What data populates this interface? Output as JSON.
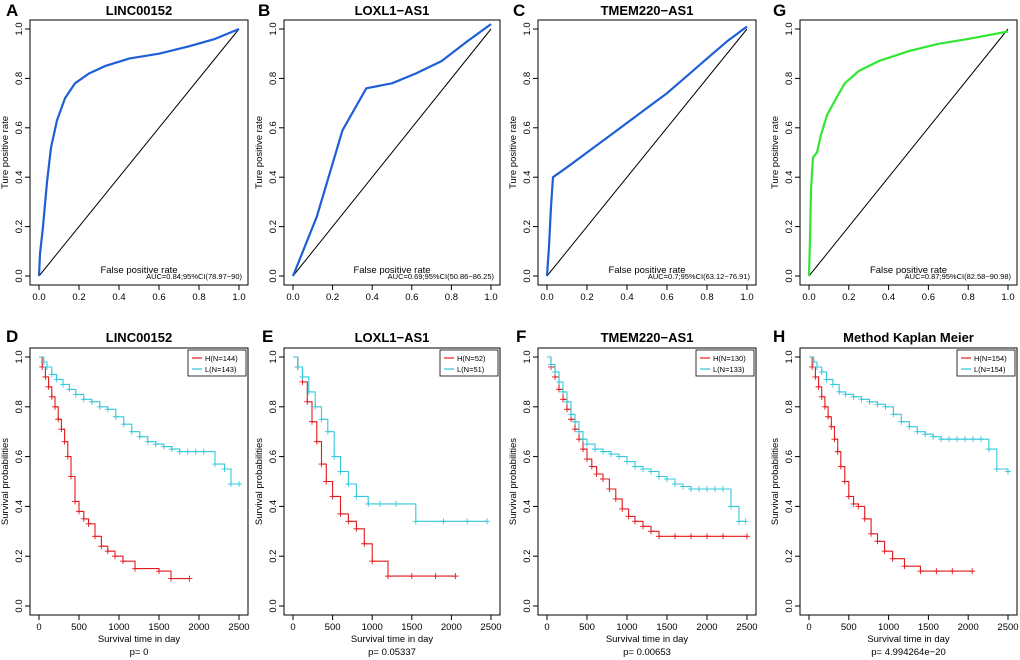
{
  "figure": {
    "colors": {
      "black": "#000000",
      "roc_blue": "#1f5fd6",
      "roc_green": "#33e633",
      "km_high": "#e31a1c",
      "km_low": "#33c8dc"
    },
    "roc_panels": [
      {
        "letter": "A",
        "title": "LINC00152",
        "auc_text": "AUC=0.84;95%CI(78.97−90)",
        "xlabel": "False positive rate",
        "ylabel": "Ture positive rate"
      },
      {
        "letter": "B",
        "title": "LOXL1−AS1",
        "auc_text": "AUC=0.69;95%CI(50.86−86.25)",
        "xlabel": "False positive rate",
        "ylabel": "Ture positive rate"
      },
      {
        "letter": "C",
        "title": "TMEM220−AS1",
        "auc_text": "AUC=0.7;95%CI(63.12−76.91)",
        "xlabel": "False positive rate",
        "ylabel": "Ture positive rate"
      },
      {
        "letter": "G",
        "title": "",
        "auc_text": "AUC=0.87;95%CI(82.58−90.98)",
        "xlabel": "False positive rate",
        "ylabel": "Ture positive rate"
      }
    ],
    "km_panels": [
      {
        "letter": "D",
        "title": "LINC00152",
        "legend_high": "H(N=144)",
        "legend_low": "L(N=143)",
        "pvalue": "p= 0",
        "xlabel": "Survival time in day",
        "ylabel": "Survival probabilities"
      },
      {
        "letter": "E",
        "title": "LOXL1−AS1",
        "legend_high": "H(N=52)",
        "legend_low": "L(N=51)",
        "pvalue": "p= 0.05337",
        "xlabel": "Survival time in day",
        "ylabel": "Survival probabilities"
      },
      {
        "letter": "F",
        "title": "TMEM220−AS1",
        "legend_high": "H(N=130)",
        "legend_low": "L(N=133)",
        "pvalue": "p= 0.00653",
        "xlabel": "Survival time in day",
        "ylabel": "Survival probabilities"
      },
      {
        "letter": "H",
        "title": "Method Kaplan Meier",
        "legend_high": "H(N=154)",
        "legend_low": "L(N=154)",
        "pvalue": "p= 4.994264e−20",
        "xlabel": "Survival time in day",
        "ylabel": "Survival probabilities"
      }
    ]
  },
  "chart_data": [
    {
      "type": "line",
      "panel": "A",
      "title": "LINC00152",
      "xlabel": "False positive rate",
      "ylabel": "Ture positive rate",
      "xlim": [
        0,
        1
      ],
      "ylim": [
        0,
        1
      ],
      "xticks": [
        0.0,
        0.2,
        0.4,
        0.6,
        0.8,
        1.0
      ],
      "yticks": [
        0.0,
        0.2,
        0.4,
        0.6,
        0.8,
        1.0
      ],
      "annotation": "AUC=0.84;95%CI(78.97−90)",
      "reference_line": [
        [
          0,
          0
        ],
        [
          1,
          1
        ]
      ],
      "series": [
        {
          "name": "ROC",
          "x": [
            0,
            0.005,
            0.02,
            0.04,
            0.06,
            0.09,
            0.13,
            0.18,
            0.25,
            0.33,
            0.45,
            0.6,
            0.75,
            0.88,
            1.0
          ],
          "y": [
            0,
            0.09,
            0.2,
            0.38,
            0.52,
            0.63,
            0.72,
            0.78,
            0.82,
            0.85,
            0.88,
            0.9,
            0.93,
            0.96,
            1.0
          ]
        }
      ]
    },
    {
      "type": "line",
      "panel": "B",
      "title": "LOXL1−AS1",
      "xlabel": "False positive rate",
      "ylabel": "Ture positive rate",
      "xlim": [
        0,
        1
      ],
      "ylim": [
        0,
        1
      ],
      "xticks": [
        0.0,
        0.2,
        0.4,
        0.6,
        0.8,
        1.0
      ],
      "yticks": [
        0.0,
        0.2,
        0.4,
        0.6,
        0.8,
        1.0
      ],
      "annotation": "AUC=0.69;95%CI(50.86−86.25)",
      "reference_line": [
        [
          0,
          0
        ],
        [
          1,
          1
        ]
      ],
      "series": [
        {
          "name": "ROC",
          "x": [
            0,
            0.02,
            0.12,
            0.25,
            0.37,
            0.5,
            0.62,
            0.75,
            0.88,
            1.0
          ],
          "y": [
            0,
            0.04,
            0.24,
            0.59,
            0.76,
            0.78,
            0.82,
            0.87,
            0.95,
            1.02
          ]
        }
      ]
    },
    {
      "type": "line",
      "panel": "C",
      "title": "TMEM220−AS1",
      "xlabel": "False positive rate",
      "ylabel": "Ture positive rate",
      "xlim": [
        0,
        1
      ],
      "ylim": [
        0,
        1
      ],
      "xticks": [
        0.0,
        0.2,
        0.4,
        0.6,
        0.8,
        1.0
      ],
      "yticks": [
        0.0,
        0.2,
        0.4,
        0.6,
        0.8,
        1.0
      ],
      "annotation": "AUC=0.7;95%CI(63.12−76.91)",
      "reference_line": [
        [
          0,
          0
        ],
        [
          1,
          1
        ]
      ],
      "series": [
        {
          "name": "ROC",
          "x": [
            0,
            0.01,
            0.02,
            0.03,
            0.1,
            0.2,
            0.3,
            0.4,
            0.5,
            0.6,
            0.7,
            0.8,
            0.9,
            1.0
          ],
          "y": [
            0,
            0.12,
            0.28,
            0.4,
            0.44,
            0.5,
            0.56,
            0.62,
            0.68,
            0.74,
            0.81,
            0.88,
            0.95,
            1.01
          ]
        }
      ]
    },
    {
      "type": "line",
      "panel": "G",
      "title": "",
      "xlabel": "False positive rate",
      "ylabel": "Ture positive rate",
      "xlim": [
        0,
        1
      ],
      "ylim": [
        0,
        1
      ],
      "xticks": [
        0.0,
        0.2,
        0.4,
        0.6,
        0.8,
        1.0
      ],
      "yticks": [
        0.0,
        0.2,
        0.4,
        0.6,
        0.8,
        1.0
      ],
      "annotation": "AUC=0.87;95%CI(82.58−90.98)",
      "reference_line": [
        [
          0,
          0
        ],
        [
          1,
          1
        ]
      ],
      "series": [
        {
          "name": "ROC",
          "x": [
            0,
            0.005,
            0.01,
            0.02,
            0.04,
            0.06,
            0.09,
            0.13,
            0.18,
            0.25,
            0.35,
            0.5,
            0.65,
            0.8,
            1.0
          ],
          "y": [
            0,
            0.15,
            0.35,
            0.48,
            0.5,
            0.57,
            0.65,
            0.71,
            0.78,
            0.83,
            0.87,
            0.91,
            0.94,
            0.96,
            0.99
          ]
        }
      ]
    },
    {
      "type": "line",
      "panel": "D",
      "subtype": "kaplan-meier",
      "title": "LINC00152",
      "xlabel": "Survival time in day",
      "ylabel": "Survival probabilities",
      "xlim": [
        0,
        2500
      ],
      "ylim": [
        0,
        1
      ],
      "xticks": [
        0,
        500,
        1000,
        1500,
        2000,
        2500
      ],
      "yticks": [
        0.0,
        0.2,
        0.4,
        0.6,
        0.8,
        1.0
      ],
      "pvalue": "p= 0",
      "series": [
        {
          "name": "H(N=144)",
          "color": "#e31a1c",
          "x": [
            0,
            40,
            80,
            120,
            160,
            200,
            240,
            280,
            320,
            360,
            400,
            450,
            500,
            560,
            620,
            700,
            780,
            860,
            950,
            1050,
            1200,
            1500,
            1650,
            1880
          ],
          "y": [
            1.0,
            0.96,
            0.92,
            0.88,
            0.84,
            0.8,
            0.75,
            0.71,
            0.66,
            0.6,
            0.52,
            0.42,
            0.38,
            0.35,
            0.33,
            0.28,
            0.24,
            0.22,
            0.2,
            0.18,
            0.15,
            0.14,
            0.11,
            0.11
          ]
        },
        {
          "name": "L(N=143)",
          "color": "#33c8dc",
          "x": [
            0,
            60,
            100,
            160,
            220,
            300,
            380,
            460,
            560,
            660,
            760,
            860,
            960,
            1060,
            1160,
            1260,
            1360,
            1460,
            1560,
            1660,
            1760,
            1860,
            1960,
            2060,
            2200,
            2320,
            2400,
            2500
          ],
          "y": [
            1.0,
            0.98,
            0.96,
            0.93,
            0.91,
            0.89,
            0.87,
            0.85,
            0.83,
            0.82,
            0.8,
            0.79,
            0.76,
            0.73,
            0.7,
            0.68,
            0.66,
            0.65,
            0.64,
            0.63,
            0.62,
            0.62,
            0.62,
            0.62,
            0.57,
            0.55,
            0.49,
            0.49
          ]
        }
      ]
    },
    {
      "type": "line",
      "panel": "E",
      "subtype": "kaplan-meier",
      "title": "LOXL1−AS1",
      "xlabel": "Survival time in day",
      "ylabel": "Survival probabilities",
      "xlim": [
        0,
        2500
      ],
      "ylim": [
        0,
        1
      ],
      "xticks": [
        0,
        500,
        1000,
        1500,
        2000,
        2500
      ],
      "yticks": [
        0.0,
        0.2,
        0.4,
        0.6,
        0.8,
        1.0
      ],
      "pvalue": "p= 0.05337",
      "series": [
        {
          "name": "H(N=52)",
          "color": "#e31a1c",
          "x": [
            0,
            60,
            120,
            180,
            240,
            300,
            360,
            420,
            500,
            600,
            700,
            800,
            900,
            1000,
            1200,
            1500,
            1800,
            2050
          ],
          "y": [
            1.0,
            0.96,
            0.9,
            0.82,
            0.74,
            0.66,
            0.57,
            0.5,
            0.44,
            0.37,
            0.34,
            0.31,
            0.25,
            0.18,
            0.12,
            0.12,
            0.12,
            0.12
          ]
        },
        {
          "name": "L(N=51)",
          "color": "#33c8dc",
          "x": [
            0,
            60,
            120,
            200,
            280,
            360,
            440,
            520,
            600,
            700,
            800,
            950,
            1100,
            1300,
            1550,
            1900,
            2200,
            2450
          ],
          "y": [
            1.0,
            0.96,
            0.92,
            0.86,
            0.8,
            0.75,
            0.7,
            0.6,
            0.54,
            0.49,
            0.44,
            0.41,
            0.41,
            0.41,
            0.34,
            0.34,
            0.34,
            0.34
          ]
        }
      ]
    },
    {
      "type": "line",
      "panel": "F",
      "subtype": "kaplan-meier",
      "title": "TMEM220−AS1",
      "xlabel": "Survival time in day",
      "ylabel": "Survival probabilities",
      "xlim": [
        0,
        2500
      ],
      "ylim": [
        0,
        1
      ],
      "xticks": [
        0,
        500,
        1000,
        1500,
        2000,
        2500
      ],
      "yticks": [
        0.0,
        0.2,
        0.4,
        0.6,
        0.8,
        1.0
      ],
      "pvalue": "p= 0.00653",
      "series": [
        {
          "name": "H(N=130)",
          "color": "#e31a1c",
          "x": [
            0,
            50,
            100,
            150,
            200,
            250,
            300,
            350,
            400,
            450,
            500,
            560,
            620,
            700,
            780,
            860,
            940,
            1020,
            1100,
            1200,
            1300,
            1400,
            1600,
            1800,
            2000,
            2200,
            2500
          ],
          "y": [
            1.0,
            0.96,
            0.92,
            0.87,
            0.83,
            0.79,
            0.75,
            0.71,
            0.67,
            0.63,
            0.59,
            0.56,
            0.53,
            0.51,
            0.47,
            0.43,
            0.39,
            0.36,
            0.34,
            0.32,
            0.3,
            0.28,
            0.28,
            0.28,
            0.28,
            0.28,
            0.28
          ]
        },
        {
          "name": "L(N=133)",
          "color": "#33c8dc",
          "x": [
            0,
            50,
            100,
            150,
            200,
            250,
            300,
            350,
            400,
            450,
            500,
            600,
            700,
            800,
            900,
            1000,
            1100,
            1200,
            1300,
            1400,
            1500,
            1600,
            1700,
            1800,
            1900,
            2000,
            2100,
            2200,
            2300,
            2400,
            2480
          ],
          "y": [
            1.0,
            0.97,
            0.94,
            0.9,
            0.86,
            0.82,
            0.77,
            0.74,
            0.7,
            0.67,
            0.65,
            0.63,
            0.62,
            0.61,
            0.6,
            0.58,
            0.56,
            0.55,
            0.54,
            0.52,
            0.51,
            0.49,
            0.48,
            0.47,
            0.47,
            0.47,
            0.47,
            0.47,
            0.4,
            0.34,
            0.34
          ]
        }
      ]
    },
    {
      "type": "line",
      "panel": "H",
      "subtype": "kaplan-meier",
      "title": "Method Kaplan Meier",
      "xlabel": "Survival time in day",
      "ylabel": "Survival probabilities",
      "xlim": [
        0,
        2500
      ],
      "ylim": [
        0,
        1
      ],
      "xticks": [
        0,
        500,
        1000,
        1500,
        2000,
        2500
      ],
      "yticks": [
        0.0,
        0.2,
        0.4,
        0.6,
        0.8,
        1.0
      ],
      "pvalue": "p= 4.994264e−20",
      "series": [
        {
          "name": "H(N=154)",
          "color": "#e31a1c",
          "x": [
            0,
            40,
            80,
            120,
            160,
            200,
            240,
            280,
            320,
            360,
            400,
            450,
            500,
            560,
            620,
            700,
            780,
            860,
            950,
            1050,
            1200,
            1400,
            1600,
            1800,
            2050
          ],
          "y": [
            1.0,
            0.96,
            0.92,
            0.88,
            0.84,
            0.8,
            0.76,
            0.72,
            0.67,
            0.62,
            0.56,
            0.5,
            0.44,
            0.41,
            0.4,
            0.35,
            0.29,
            0.26,
            0.22,
            0.19,
            0.16,
            0.14,
            0.14,
            0.14,
            0.14
          ]
        },
        {
          "name": "L(N=154)",
          "color": "#33c8dc",
          "x": [
            0,
            60,
            100,
            160,
            220,
            300,
            380,
            460,
            560,
            660,
            760,
            860,
            960,
            1060,
            1160,
            1260,
            1360,
            1460,
            1560,
            1660,
            1760,
            1860,
            1960,
            2060,
            2160,
            2260,
            2360,
            2500
          ],
          "y": [
            1.0,
            0.98,
            0.96,
            0.94,
            0.91,
            0.89,
            0.86,
            0.85,
            0.84,
            0.83,
            0.82,
            0.81,
            0.8,
            0.77,
            0.74,
            0.72,
            0.7,
            0.69,
            0.68,
            0.67,
            0.67,
            0.67,
            0.67,
            0.67,
            0.67,
            0.63,
            0.55,
            0.54
          ]
        }
      ]
    }
  ]
}
